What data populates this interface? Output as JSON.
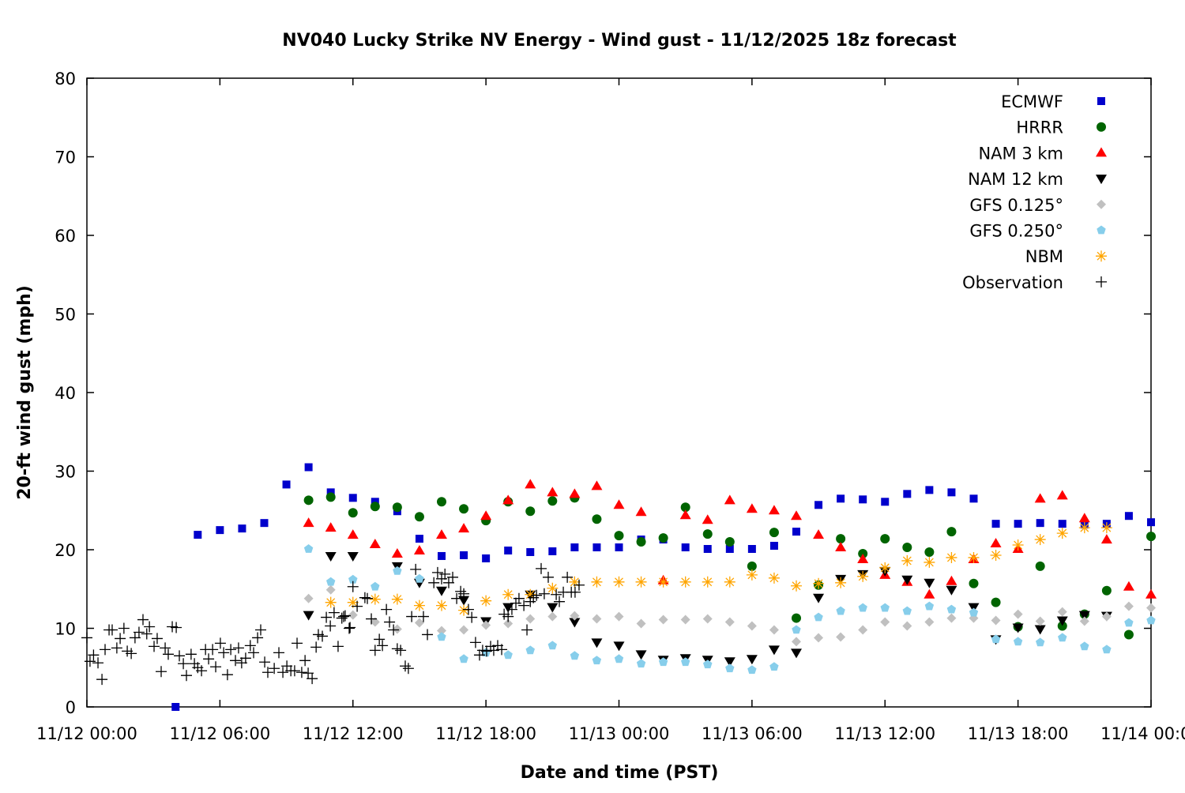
{
  "chart_data": {
    "type": "scatter",
    "title": "NV040 Lucky Strike NV Energy - Wind gust - 11/12/2025 18z forecast",
    "xlabel": "Date and time (PST)",
    "ylabel": "20-ft wind gust (mph)",
    "x_units": "hours since 11/12 00:00 PST",
    "xlim": [
      0,
      48
    ],
    "ylim": [
      0,
      80
    ],
    "xticks": [
      0,
      6,
      12,
      18,
      24,
      30,
      36,
      42,
      48
    ],
    "xtick_labels": [
      "11/12 00:00",
      "11/12 06:00",
      "11/12 12:00",
      "11/12 18:00",
      "11/13 00:00",
      "11/13 06:00",
      "11/13 12:00",
      "11/13 18:00",
      "11/14 00:00"
    ],
    "yticks": [
      0,
      10,
      20,
      30,
      40,
      50,
      60,
      70,
      80
    ],
    "ytick_labels": [
      "0",
      "10",
      "20",
      "30",
      "40",
      "50",
      "60",
      "70",
      "80"
    ],
    "grid": false,
    "legend_position": "top-right",
    "series": [
      {
        "name": "ECMWF",
        "marker": "square",
        "color": "#0000cc",
        "x_start": 4,
        "values": [
          0,
          21.9,
          22.5,
          22.7,
          23.4,
          28.3,
          30.5,
          27.3,
          26.6,
          26.1,
          24.9,
          21.4,
          19.2,
          19.3,
          18.9,
          19.9,
          19.7,
          19.8,
          20.3,
          20.3,
          20.3,
          21.3,
          21.3,
          20.3,
          20.1,
          20.1,
          20.1,
          20.5,
          22.3,
          25.7,
          26.5,
          26.4,
          26.1,
          27.1,
          27.6,
          27.3,
          26.5,
          23.3,
          23.3,
          23.4,
          23.3,
          23.2,
          23.3,
          24.3,
          23.5
        ]
      },
      {
        "name": "HRRR",
        "marker": "circle",
        "color": "#006400",
        "x_start": 10,
        "values": [
          26.3,
          26.7,
          24.7,
          25.5,
          25.4,
          24.2,
          26.1,
          25.2,
          23.7,
          26.1,
          24.9,
          26.2,
          26.6,
          23.9,
          21.8,
          21.0,
          21.5,
          25.4,
          22.0,
          21.0,
          17.9,
          22.2,
          11.3,
          15.5,
          21.4,
          19.5,
          21.4,
          20.3,
          19.7,
          22.3,
          15.7,
          13.3,
          10.2,
          17.9,
          10.3,
          11.8,
          14.8,
          9.2,
          21.7
        ]
      },
      {
        "name": "NAM 3 km",
        "marker": "triangle-up",
        "color": "#ff0000",
        "x_start": 10,
        "values": [
          23.4,
          22.8,
          21.9,
          20.7,
          19.5,
          19.9,
          21.9,
          22.7,
          24.3,
          26.3,
          28.3,
          27.3,
          27.1,
          28.1,
          25.7,
          24.8,
          16.1,
          24.4,
          23.8,
          26.3,
          25.2,
          25.0,
          24.3,
          21.9,
          20.3,
          18.8,
          16.8,
          15.9,
          14.3,
          16.0,
          18.8,
          20.8,
          20.1,
          26.5,
          26.9,
          24.0,
          21.3,
          15.3,
          14.3
        ]
      },
      {
        "name": "NAM 12 km",
        "marker": "triangle-down",
        "color": "#000000",
        "x_start": 10,
        "values": [
          11.7,
          19.2,
          19.2,
          null,
          17.9,
          15.8,
          14.8,
          13.6,
          10.9,
          12.7,
          14.3,
          12.7,
          10.8,
          8.2,
          7.8,
          6.7,
          6.0,
          6.2,
          6.0,
          5.8,
          6.1,
          7.3,
          6.9,
          13.9,
          16.3,
          16.9,
          17.3,
          16.2,
          15.8,
          14.9,
          12.7,
          8.6,
          10.1,
          9.9,
          11.0,
          11.7,
          11.6
        ]
      },
      {
        "name": "GFS 0.125°",
        "marker": "diamond",
        "color": "#c0c0c0",
        "x_start": 10,
        "values": [
          13.8,
          14.9,
          11.7,
          10.8,
          9.9,
          10.7,
          9.7,
          9.8,
          10.4,
          10.6,
          11.2,
          11.5,
          11.6,
          11.2,
          11.5,
          10.6,
          11.1,
          11.1,
          11.2,
          10.8,
          10.3,
          9.8,
          8.3,
          8.8,
          8.9,
          9.8,
          10.8,
          10.3,
          10.8,
          11.3,
          11.3,
          11.0,
          11.8,
          10.9,
          12.1,
          10.9,
          11.5,
          12.8,
          12.6
        ]
      },
      {
        "name": "GFS 0.250°",
        "marker": "pentagon",
        "color": "#87ceeb",
        "x_start": 10,
        "values": [
          20.1,
          15.9,
          16.2,
          15.3,
          17.3,
          16.3,
          8.9,
          6.1,
          6.9,
          6.6,
          7.2,
          7.8,
          6.5,
          5.9,
          6.1,
          5.5,
          5.7,
          5.7,
          5.4,
          4.9,
          4.7,
          5.1,
          9.8,
          11.4,
          12.2,
          12.6,
          12.6,
          12.2,
          12.8,
          12.4,
          12.0,
          8.6,
          8.3,
          8.2,
          8.8,
          7.7,
          7.3,
          10.7,
          11.0
        ]
      },
      {
        "name": "NBM",
        "marker": "asterisk",
        "color": "#ffa500",
        "x_start": 11,
        "values": [
          13.3,
          13.3,
          13.7,
          13.7,
          12.9,
          12.9,
          12.3,
          13.5,
          14.3,
          14.3,
          15.1,
          15.9,
          15.9,
          15.9,
          15.9,
          15.9,
          15.9,
          15.9,
          15.9,
          16.8,
          16.4,
          15.4,
          15.7,
          15.8,
          16.6,
          17.7,
          18.6,
          18.4,
          19.0,
          19.0,
          19.3,
          20.6,
          21.3,
          22.1,
          22.8,
          22.8
        ]
      },
      {
        "name": "Observation",
        "marker": "plus",
        "color": "#000000",
        "points": [
          [
            0,
            8.8
          ],
          [
            0.14,
            5.8
          ],
          [
            0.3,
            6.6
          ],
          [
            0.5,
            5.6
          ],
          [
            0.68,
            3.5
          ],
          [
            0.82,
            7.3
          ],
          [
            1.0,
            9.8
          ],
          [
            1.14,
            9.8
          ],
          [
            1.35,
            7.5
          ],
          [
            1.5,
            8.7
          ],
          [
            1.67,
            10.0
          ],
          [
            1.82,
            7.1
          ],
          [
            2.0,
            6.8
          ],
          [
            2.17,
            8.8
          ],
          [
            2.35,
            9.5
          ],
          [
            2.53,
            11.1
          ],
          [
            2.7,
            9.3
          ],
          [
            2.82,
            10.2
          ],
          [
            3.03,
            7.7
          ],
          [
            3.17,
            8.7
          ],
          [
            3.35,
            4.5
          ],
          [
            3.53,
            7.5
          ],
          [
            3.67,
            6.7
          ],
          [
            3.85,
            10.2
          ],
          [
            4.03,
            10.1
          ],
          [
            4.17,
            6.5
          ],
          [
            4.35,
            5.5
          ],
          [
            4.49,
            4.0
          ],
          [
            4.7,
            6.7
          ],
          [
            4.85,
            5.5
          ],
          [
            5.0,
            5.0
          ],
          [
            5.17,
            4.6
          ],
          [
            5.35,
            7.3
          ],
          [
            5.49,
            6.1
          ],
          [
            5.67,
            7.3
          ],
          [
            5.81,
            5.1
          ],
          [
            6.02,
            8.1
          ],
          [
            6.17,
            6.9
          ],
          [
            6.34,
            4.1
          ],
          [
            6.49,
            7.3
          ],
          [
            6.7,
            5.9
          ],
          [
            6.84,
            7.5
          ],
          [
            6.98,
            5.6
          ],
          [
            7.16,
            6.2
          ],
          [
            7.37,
            7.8
          ],
          [
            7.52,
            6.9
          ],
          [
            7.7,
            8.8
          ],
          [
            7.84,
            9.8
          ],
          [
            8.02,
            5.7
          ],
          [
            8.16,
            4.4
          ],
          [
            8.45,
            4.9
          ],
          [
            8.66,
            6.9
          ],
          [
            8.84,
            4.4
          ],
          [
            9.02,
            5.2
          ],
          [
            9.2,
            4.6
          ],
          [
            9.37,
            4.6
          ],
          [
            9.48,
            8.1
          ],
          [
            9.69,
            4.4
          ],
          [
            9.84,
            5.9
          ],
          [
            9.98,
            4.3
          ],
          [
            10.16,
            3.6
          ],
          [
            10.34,
            7.6
          ],
          [
            10.44,
            9.2
          ],
          [
            10.62,
            9.0
          ],
          [
            10.8,
            11.4
          ],
          [
            10.98,
            10.3
          ],
          [
            11.15,
            12.0
          ],
          [
            11.33,
            7.7
          ],
          [
            11.5,
            11.3
          ],
          [
            11.58,
            11.5
          ],
          [
            11.65,
            11.6
          ],
          [
            11.83,
            10.0
          ],
          [
            11.87,
            10.1
          ],
          [
            12.0,
            15.3
          ],
          [
            12.19,
            12.8
          ],
          [
            12.54,
            13.9
          ],
          [
            12.65,
            13.8
          ],
          [
            12.83,
            11.2
          ],
          [
            13.0,
            7.2
          ],
          [
            13.19,
            8.6
          ],
          [
            13.33,
            7.8
          ],
          [
            13.51,
            12.4
          ],
          [
            13.65,
            10.8
          ],
          [
            13.83,
            9.8
          ],
          [
            14.0,
            7.4
          ],
          [
            14.15,
            7.2
          ],
          [
            14.36,
            5.2
          ],
          [
            14.5,
            4.9
          ],
          [
            14.65,
            11.5
          ],
          [
            14.83,
            17.5
          ],
          [
            15.18,
            11.5
          ],
          [
            15.36,
            9.2
          ],
          [
            15.65,
            15.8
          ],
          [
            15.82,
            17.1
          ],
          [
            16.0,
            16.3
          ],
          [
            16.15,
            16.9
          ],
          [
            16.32,
            15.8
          ],
          [
            16.5,
            16.5
          ],
          [
            16.68,
            13.8
          ],
          [
            16.86,
            14.7
          ],
          [
            17.0,
            14.4
          ],
          [
            17.21,
            12.4
          ],
          [
            17.36,
            11.4
          ],
          [
            17.53,
            8.2
          ],
          [
            17.71,
            6.6
          ],
          [
            17.85,
            7.2
          ],
          [
            18.03,
            7.1
          ],
          [
            18.21,
            7.7
          ],
          [
            18.35,
            7.2
          ],
          [
            18.53,
            7.8
          ],
          [
            18.71,
            7.3
          ],
          [
            18.82,
            11.8
          ],
          [
            19.0,
            11.5
          ],
          [
            19.17,
            12.4
          ],
          [
            19.35,
            13.2
          ],
          [
            19.49,
            13.8
          ],
          [
            19.71,
            12.9
          ],
          [
            19.85,
            9.8
          ],
          [
            20.0,
            13.4
          ],
          [
            20.14,
            13.9
          ],
          [
            20.28,
            14.2
          ],
          [
            20.49,
            17.6
          ],
          [
            20.63,
            14.4
          ],
          [
            20.81,
            16.5
          ],
          [
            21.17,
            14.3
          ],
          [
            21.31,
            13.4
          ],
          [
            21.49,
            14.6
          ],
          [
            21.67,
            16.5
          ],
          [
            21.85,
            14.6
          ],
          [
            22.02,
            14.6
          ],
          [
            22.2,
            15.5
          ]
        ]
      }
    ]
  }
}
